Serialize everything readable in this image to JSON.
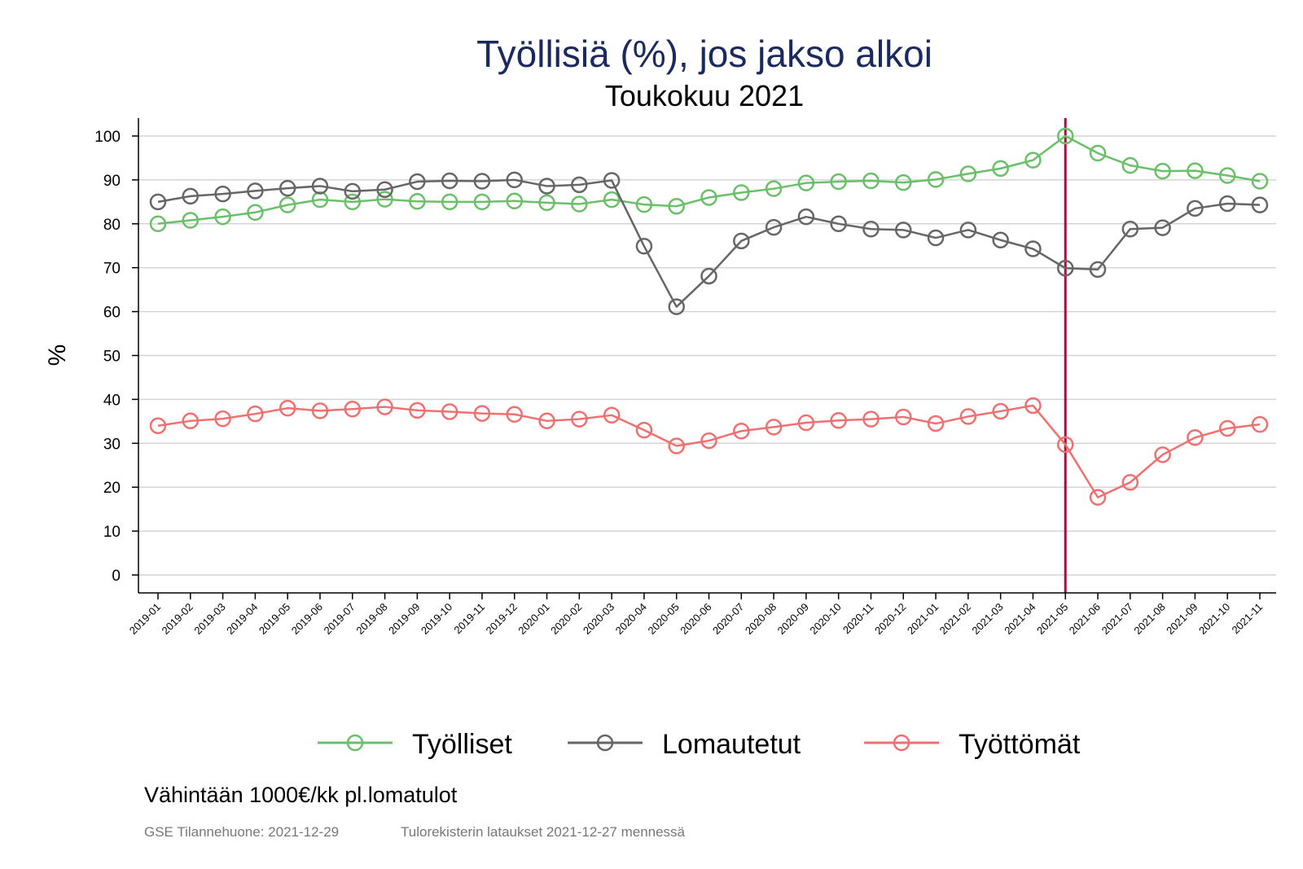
{
  "chart_data": {
    "type": "line",
    "title": "Työllisiä (%), jos jakso alkoi",
    "subtitle": "Toukokuu 2021",
    "xlabel": "",
    "ylabel": "%",
    "ylim": [
      0,
      100
    ],
    "yticks": [
      0,
      10,
      20,
      30,
      40,
      50,
      60,
      70,
      80,
      90,
      100
    ],
    "grid": true,
    "legend_position": "bottom",
    "categories": [
      "2019-01",
      "2019-02",
      "2019-03",
      "2019-04",
      "2019-05",
      "2019-06",
      "2019-07",
      "2019-08",
      "2019-09",
      "2019-10",
      "2019-11",
      "2019-12",
      "2020-01",
      "2020-02",
      "2020-03",
      "2020-04",
      "2020-05",
      "2020-06",
      "2020-07",
      "2020-08",
      "2020-09",
      "2020-10",
      "2020-11",
      "2020-12",
      "2021-01",
      "2021-02",
      "2021-03",
      "2021-04",
      "2021-05",
      "2021-06",
      "2021-07",
      "2021-08",
      "2021-09",
      "2021-10",
      "2021-11"
    ],
    "reference_line": {
      "category": "2021-05",
      "color": "#c0003c"
    },
    "series": [
      {
        "name": "Työlliset",
        "color": "#6abf69",
        "values": [
          80,
          80.8,
          81.6,
          82.6,
          84.3,
          85.5,
          85.0,
          85.6,
          85.1,
          85.0,
          85.0,
          85.2,
          84.8,
          84.5,
          85.5,
          84.4,
          84.0,
          86.0,
          87.1,
          88.0,
          89.3,
          89.6,
          89.8,
          89.4,
          90.1,
          91.4,
          92.6,
          94.5,
          100,
          96.1,
          93.3,
          92.0,
          92.1,
          91.0,
          89.7
        ]
      },
      {
        "name": "Lomautetut",
        "color": "#666666",
        "values": [
          85,
          86.3,
          86.8,
          87.5,
          88.1,
          88.6,
          87.4,
          87.8,
          89.6,
          89.8,
          89.7,
          90.0,
          88.6,
          88.9,
          89.9,
          74.9,
          61.1,
          68.1,
          76.1,
          79.2,
          81.6,
          80.0,
          78.8,
          78.6,
          76.8,
          78.6,
          76.3,
          74.3,
          69.9,
          69.6,
          78.8,
          79.1,
          83.5,
          84.6,
          84.3
        ]
      },
      {
        "name": "Työttömät",
        "color": "#f07070",
        "values": [
          34.0,
          35.1,
          35.6,
          36.7,
          38.0,
          37.4,
          37.8,
          38.3,
          37.5,
          37.2,
          36.8,
          36.6,
          35.1,
          35.5,
          36.4,
          33.0,
          29.4,
          30.6,
          32.8,
          33.7,
          34.7,
          35.2,
          35.5,
          36.0,
          34.5,
          36.1,
          37.3,
          38.6,
          29.7,
          17.7,
          21.1,
          27.4,
          31.3,
          33.4,
          34.3
        ]
      }
    ]
  },
  "footer": {
    "note": "Vähintään 1000€/kk pl.lomatulot",
    "source": "GSE Tilannehuone: 2021-12-29",
    "data_note": "Tulorekisterin lataukset 2021-12-27 mennessä"
  }
}
